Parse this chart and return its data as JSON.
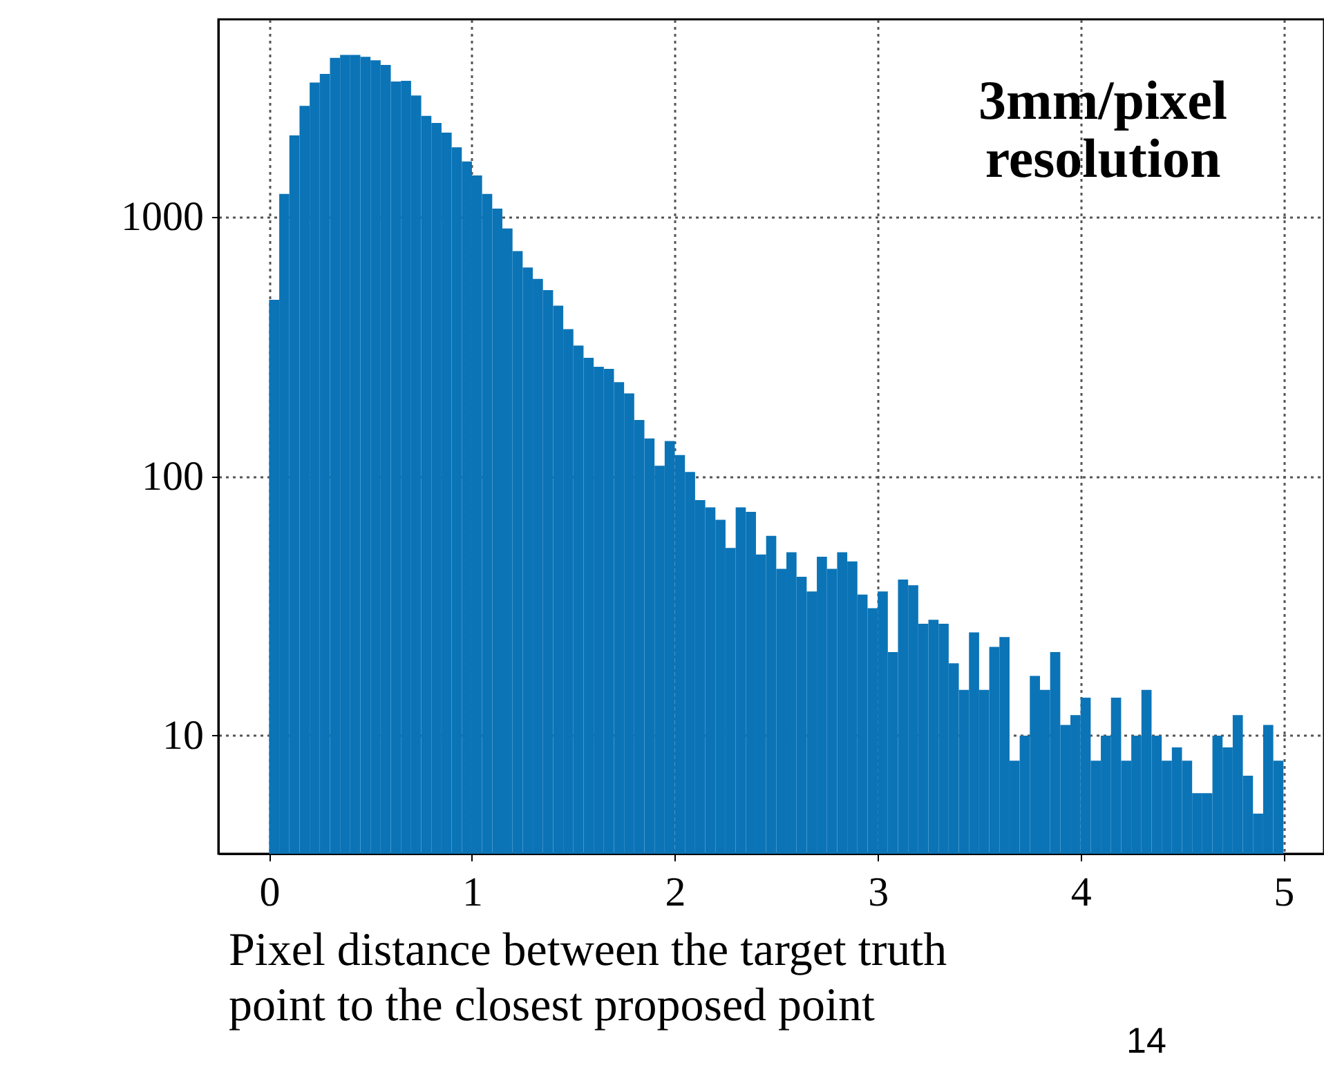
{
  "chart_data": {
    "type": "histogram",
    "xlabel": "Pixel distance between the target truth point to the closest proposed point",
    "bins": [
      0,
      0.05,
      0.1,
      0.15,
      0.2,
      0.25,
      0.3,
      0.35,
      0.4,
      0.45,
      0.5,
      0.55,
      0.6,
      0.65,
      0.7,
      0.75,
      0.8,
      0.85,
      0.9,
      0.95,
      1,
      1.05,
      1.1,
      1.15,
      1.2,
      1.25,
      1.3,
      1.35,
      1.4,
      1.45,
      1.5,
      1.55,
      1.6,
      1.65,
      1.7,
      1.75,
      1.8,
      1.85,
      1.9,
      1.95,
      2,
      2.05,
      2.1,
      2.15,
      2.2,
      2.25,
      2.3,
      2.35,
      2.4,
      2.45,
      2.5,
      2.55,
      2.6,
      2.65,
      2.7,
      2.75,
      2.8,
      2.85,
      2.9,
      2.95,
      3,
      3.05,
      3.1,
      3.15,
      3.2,
      3.25,
      3.3,
      3.35,
      3.4,
      3.45,
      3.5,
      3.55,
      3.6,
      3.65,
      3.7,
      3.75,
      3.8,
      3.85,
      3.9,
      3.95,
      4,
      4.05,
      4.1,
      4.15,
      4.2,
      4.25,
      4.3,
      4.35,
      4.4,
      4.45,
      4.5,
      4.55,
      4.6,
      4.65,
      4.7,
      4.75,
      4.8,
      4.85,
      4.9,
      4.95,
      5
    ],
    "values": [
      480,
      1230,
      2070,
      2690,
      3310,
      3570,
      4120,
      4230,
      4230,
      4160,
      4030,
      3870,
      3340,
      3360,
      2950,
      2460,
      2310,
      2120,
      1860,
      1640,
      1450,
      1230,
      1080,
      905,
      740,
      640,
      578,
      523,
      456,
      370,
      320,
      287,
      265,
      260,
      231,
      209,
      165,
      140,
      110,
      137,
      121,
      104,
      81,
      76,
      68,
      53,
      76,
      73,
      50,
      59,
      44,
      51,
      41,
      36,
      49,
      44,
      51,
      47,
      35,
      31,
      36,
      21,
      40,
      38,
      27,
      28,
      27,
      19,
      15,
      25,
      15,
      22,
      24,
      8,
      10,
      17,
      15,
      21,
      11,
      12,
      14,
      8,
      10,
      14,
      8,
      10,
      15,
      10,
      8,
      9,
      8,
      6,
      6,
      10,
      9,
      12,
      7,
      5,
      11,
      8
    ],
    "color": "#0b74b7",
    "log": true,
    "ylim": [
      3.5,
      5800
    ],
    "yticks": [
      10,
      100,
      1000
    ],
    "xlim": [
      -0.25,
      5.2
    ],
    "xticks": [
      0,
      1,
      2,
      3,
      4,
      5
    ],
    "grid": true,
    "annotations": [
      "3mm/pixel\nresolution",
      "14"
    ]
  }
}
